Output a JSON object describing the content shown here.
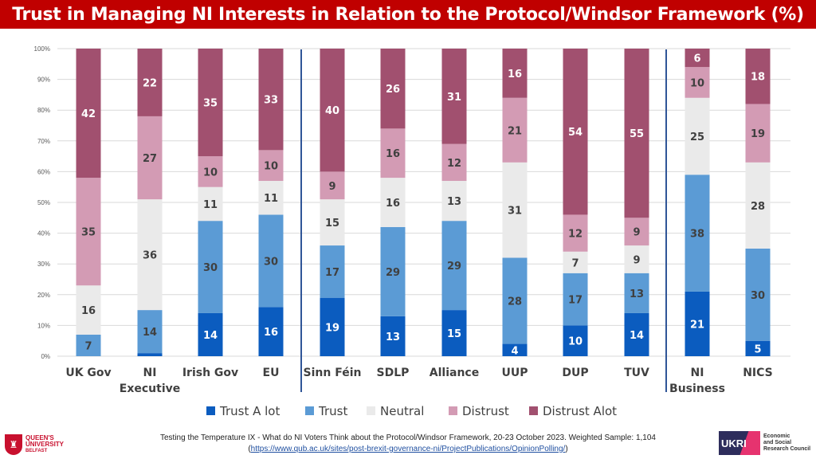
{
  "title": "Trust in Managing NI Interests in Relation to the Protocol/Windsor Framework (%)",
  "chart_data": {
    "type": "bar",
    "stacked": true,
    "categories": [
      [
        "UK Gov"
      ],
      [
        "NI",
        "Executive"
      ],
      [
        "Irish Gov"
      ],
      [
        "EU"
      ],
      [
        "Sinn Féin"
      ],
      [
        "SDLP"
      ],
      [
        "Alliance"
      ],
      [
        "UUP"
      ],
      [
        "DUP"
      ],
      [
        "TUV"
      ],
      [
        "NI",
        "Business"
      ],
      [
        "NICS"
      ]
    ],
    "group_separators_after": [
      3,
      9
    ],
    "y_ticks": [
      "0%",
      "10%",
      "20%",
      "30%",
      "40%",
      "50%",
      "60%",
      "70%",
      "80%",
      "90%",
      "100%"
    ],
    "ylim": [
      0,
      100
    ],
    "grid": true,
    "legend_position": "bottom",
    "series": [
      {
        "name": "Trust A lot",
        "color": "#0b5cbf",
        "values": [
          0,
          1,
          14,
          16,
          19,
          13,
          15,
          4,
          10,
          14,
          21,
          5
        ],
        "labels": [
          "",
          "",
          "14",
          "16",
          "19",
          "13",
          "15",
          "4",
          "10",
          "14",
          "21",
          "5"
        ],
        "label_color": "#ffffff"
      },
      {
        "name": "Trust",
        "color": "#5b9bd5",
        "values": [
          7,
          14,
          30,
          30,
          17,
          29,
          29,
          28,
          17,
          13,
          38,
          30
        ],
        "labels": [
          "7",
          "14",
          "30",
          "30",
          "17",
          "29",
          "29",
          "28",
          "17",
          "13",
          "38",
          "30"
        ],
        "label_color": "#404040"
      },
      {
        "name": "Neutral",
        "color": "#eaeaea",
        "values": [
          16,
          36,
          11,
          11,
          15,
          16,
          13,
          31,
          7,
          9,
          25,
          28
        ],
        "labels": [
          "16",
          "36",
          "11",
          "11",
          "15",
          "16",
          "13",
          "31",
          "7",
          "9",
          "25",
          "28"
        ],
        "label_color": "#404040"
      },
      {
        "name": "Distrust",
        "color": "#d39bb4",
        "values": [
          35,
          27,
          10,
          10,
          9,
          16,
          12,
          21,
          12,
          9,
          10,
          19
        ],
        "labels": [
          "35",
          "27",
          "10",
          "10",
          "9",
          "16",
          "12",
          "21",
          "12",
          "9",
          "10",
          "19"
        ],
        "label_color": "#404040"
      },
      {
        "name": "Distrust Alot",
        "color": "#a1506f",
        "values": [
          42,
          22,
          35,
          33,
          40,
          26,
          31,
          16,
          54,
          55,
          6,
          18
        ],
        "labels": [
          "42",
          "22",
          "35",
          "33",
          "40",
          "26",
          "31",
          "16",
          "54",
          "55",
          "6",
          "18"
        ],
        "label_color": "#ffffff"
      }
    ]
  },
  "footer": {
    "source_line1": "Testing the Temperature IX - What do NI Voters Think about the Protocol/Windsor Framework, 20-23 October 2023. Weighted Sample: 1,104",
    "source_open": "(",
    "source_url": "https://www.qub.ac.uk/sites/post-brexit-governance-ni/ProjectPublications/OpinionPolling/",
    "source_close": ")"
  },
  "logos": {
    "qub_line1": "QUEEN'S",
    "qub_line2": "UNIVERSITY",
    "qub_line3": "BELFAST",
    "ukri_mark": "UKRI",
    "esrc_line1": "Economic",
    "esrc_line2": "and Social",
    "esrc_line3": "Research Council"
  }
}
